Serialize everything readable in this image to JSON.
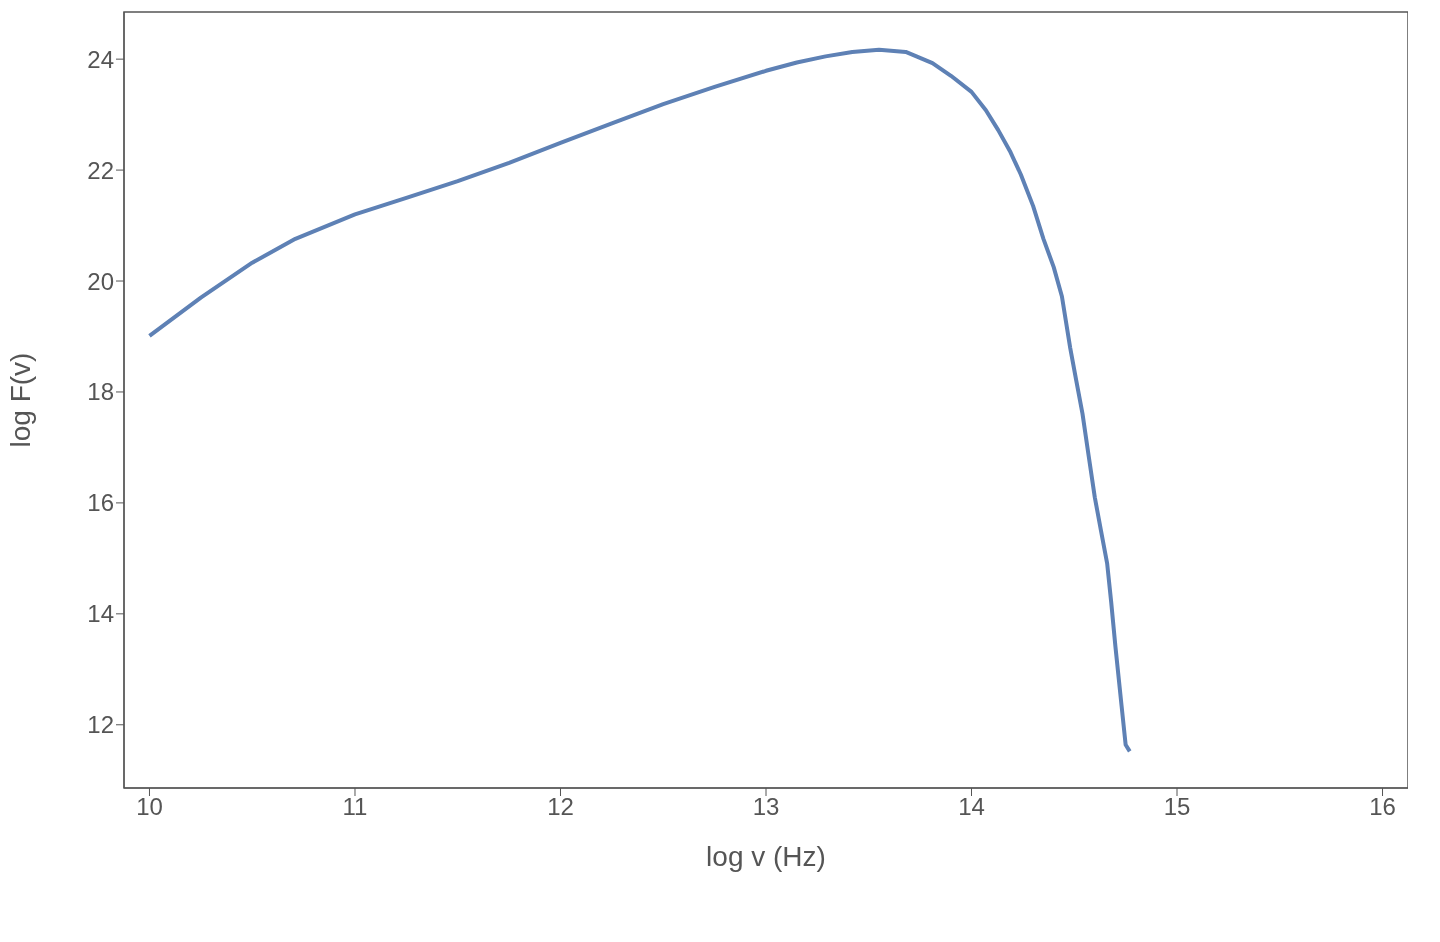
{
  "chart_data": {
    "type": "line",
    "xlabel": "log v (Hz)",
    "ylabel": "log F(v)",
    "xlim": [
      9.876,
      16.124
    ],
    "ylim": [
      10.86,
      24.85
    ],
    "xticks": [
      10,
      11,
      12,
      13,
      14,
      15,
      16
    ],
    "yticks": [
      12,
      14,
      16,
      18,
      20,
      22,
      24
    ],
    "marker": "none",
    "line_style": "solid",
    "series": [
      {
        "color": "#5e81b5",
        "x": [
          10,
          10.25,
          10.5,
          10.71,
          11,
          11.25,
          11.5,
          11.75,
          12,
          12.25,
          12.5,
          12.75,
          13,
          13.15,
          13.29,
          13.42,
          13.55,
          13.68,
          13.81,
          13.9,
          14,
          14.07,
          14.13,
          14.19,
          14.24,
          14.3,
          14.35,
          14.4,
          14.44,
          14.48,
          14.51,
          14.54,
          14.57,
          14.6,
          14.63,
          14.66,
          14.68,
          14.7,
          14.73,
          14.75,
          14.77
        ],
        "values": [
          19.01,
          19.7,
          20.33,
          20.76,
          21.2,
          21.5,
          21.8,
          22.13,
          22.49,
          22.84,
          23.19,
          23.5,
          23.79,
          23.94,
          24.05,
          24.13,
          24.17,
          24.13,
          23.93,
          23.7,
          23.41,
          23.08,
          22.72,
          22.32,
          21.92,
          21.35,
          20.76,
          20.25,
          19.72,
          18.8,
          18.2,
          17.61,
          16.85,
          16.1,
          15.5,
          14.91,
          14.2,
          13.42,
          12.35,
          11.64,
          11.52
        ]
      }
    ]
  }
}
